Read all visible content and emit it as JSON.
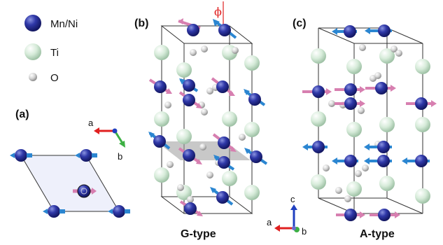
{
  "legend": [
    {
      "label": "Mn/Ni",
      "color": "#232a8a"
    },
    {
      "label": "Ti",
      "color": "#cfe6d3"
    },
    {
      "label": "O",
      "color": "#cfcfcf"
    }
  ],
  "panels": {
    "a": {
      "label": "(a)",
      "axis_a": "a",
      "axis_b": "b"
    },
    "b": {
      "label": "(b)",
      "caption": "G-type",
      "angle_label": "ϕ"
    },
    "c": {
      "label": "(c)",
      "caption": "A-type",
      "axis_c": "c",
      "axis_a": "a",
      "axis_b": "b"
    }
  },
  "colors": {
    "mn_ni": "#232a8a",
    "ti": "#cfe6d3",
    "o": "#cfcfcf",
    "spin_blue": "#2b86d1",
    "spin_pink": "#d77fb0",
    "axis_red": "#e02020",
    "axis_green": "#3cb043",
    "axis_blue": "#2040c0",
    "phi_red": "#e02020"
  },
  "icons": [
    "mn-ni-atom-icon",
    "ti-atom-icon",
    "o-atom-icon",
    "spin-arrow-icon",
    "axis-triad-icon"
  ]
}
